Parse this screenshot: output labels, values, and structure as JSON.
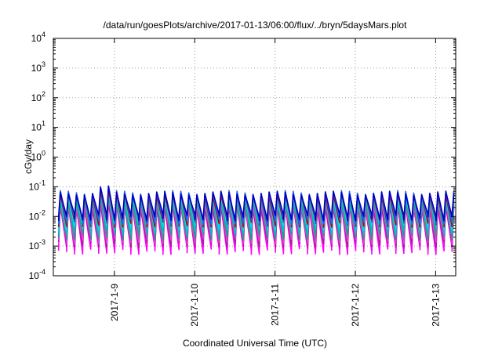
{
  "chart_data": {
    "type": "line",
    "title": "/data/run/goesPlots/archive/2017-01-13/06:00/flux/../bryn/5daysMars.plot",
    "xlabel": "Coordinated Universal Time (UTC)",
    "ylabel": "cGy/day",
    "x_scale": "time",
    "y_scale": "log",
    "xlim": [
      "2017-01-08T05:45",
      "2017-01-13T06:00"
    ],
    "ylim": [
      0.0001,
      10000
    ],
    "x_ticks": [
      {
        "value": "2017-01-09T00:00",
        "label": "2017-1-9"
      },
      {
        "value": "2017-01-10T00:00",
        "label": "2017-1-10"
      },
      {
        "value": "2017-01-11T00:00",
        "label": "2017-1-11"
      },
      {
        "value": "2017-01-12T00:00",
        "label": "2017-1-12"
      },
      {
        "value": "2017-01-13T00:00",
        "label": "2017-1-13"
      }
    ],
    "y_ticks": [
      {
        "value": 0.0001,
        "base": "10",
        "exp": "-4"
      },
      {
        "value": 0.001,
        "base": "10",
        "exp": "-3"
      },
      {
        "value": 0.01,
        "base": "10",
        "exp": "-2"
      },
      {
        "value": 0.1,
        "base": "10",
        "exp": "-1"
      },
      {
        "value": 1,
        "base": "10",
        "exp": "0"
      },
      {
        "value": 10,
        "base": "10",
        "exp": "1"
      },
      {
        "value": 100,
        "base": "10",
        "exp": "2"
      },
      {
        "value": 1000,
        "base": "10",
        "exp": "3"
      },
      {
        "value": 10000,
        "base": "10",
        "exp": "4"
      }
    ],
    "grid": true,
    "legend": "none",
    "oscillation_period_hours": 2.4,
    "series": [
      {
        "color": "#ff00ff",
        "peak": 0.022,
        "trough": 0.0007
      },
      {
        "color": "#a0208f",
        "peak": 0.02,
        "trough": 0.0012
      },
      {
        "color": "#e040e0",
        "peak": 0.025,
        "trough": 0.0016
      },
      {
        "color": "#20a080",
        "peak": 0.035,
        "trough": 0.0022
      },
      {
        "color": "#00c0c0",
        "peak": 0.045,
        "trough": 0.0032
      },
      {
        "color": "#00d8ff",
        "peak": 0.05,
        "trough": 0.0045
      },
      {
        "color": "#c00000",
        "peak": 0.055,
        "trough": 0.0058
      },
      {
        "color": "#2060ff",
        "peak": 0.065,
        "trough": 0.007
      },
      {
        "color": "#0000c0",
        "peak": 0.06,
        "trough": 0.0095
      }
    ]
  }
}
